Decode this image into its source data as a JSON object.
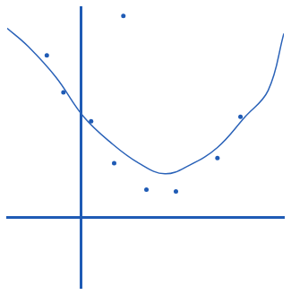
{
  "chart_data": {
    "type": "scatter",
    "xlim": [
      -8,
      22
    ],
    "ylim": [
      -8,
      24
    ],
    "tick_labels": false,
    "grid": false,
    "series": [
      {
        "type": "line",
        "color": "#2a62b8",
        "marker": "none",
        "line_style": "solid",
        "x": [
          -8,
          -5.7,
          -2.7,
          0.3,
          3.3,
          6.3,
          9.1,
          11.8,
          14.8,
          17.8,
          20.3,
          22
        ],
        "values": [
          21.6,
          19.5,
          16,
          11.5,
          8.5,
          6.2,
          5,
          6,
          8,
          11.5,
          14.5,
          21
        ]
      },
      {
        "type": "scatter",
        "color": "#1f5bb5",
        "marker": "circle",
        "x": [
          -3.7,
          -1.9,
          1.1,
          3.6,
          7.1,
          10.3,
          14.8,
          17.3,
          4.6
        ],
        "values": [
          18.5,
          14.3,
          11,
          6.2,
          3.2,
          3,
          6.8,
          11.5,
          23
        ]
      }
    ]
  }
}
